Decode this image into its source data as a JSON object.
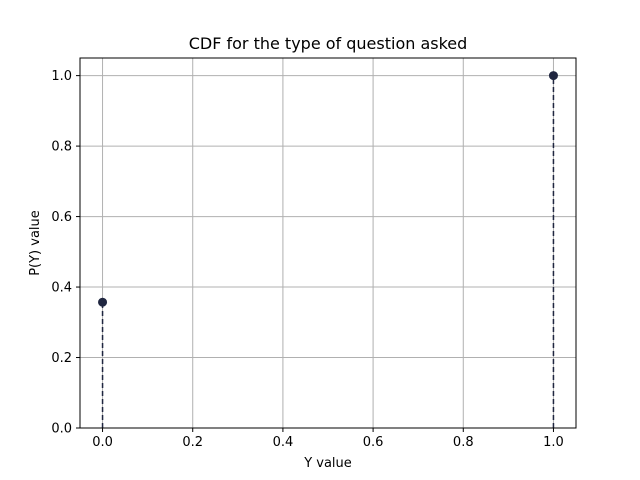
{
  "chart_data": {
    "type": "scatter",
    "title": "CDF for the type of question asked",
    "xlabel": "Y value",
    "ylabel": "P(Y) value",
    "xlim": [
      -0.05,
      1.05
    ],
    "ylim": [
      0.0,
      1.05
    ],
    "x_ticks": [
      "0.0",
      "0.2",
      "0.4",
      "0.6",
      "0.8",
      "1.0"
    ],
    "y_ticks": [
      "0.0",
      "0.2",
      "0.4",
      "0.6",
      "0.8",
      "1.0"
    ],
    "grid": true,
    "stem_style": "dashed",
    "series": [
      {
        "x": [
          0.0,
          1.0
        ],
        "y": [
          0.357,
          1.0
        ]
      }
    ],
    "colors": {
      "marker": "#1f2640",
      "grid": "#b0b0b0",
      "axes": "#000000"
    }
  }
}
